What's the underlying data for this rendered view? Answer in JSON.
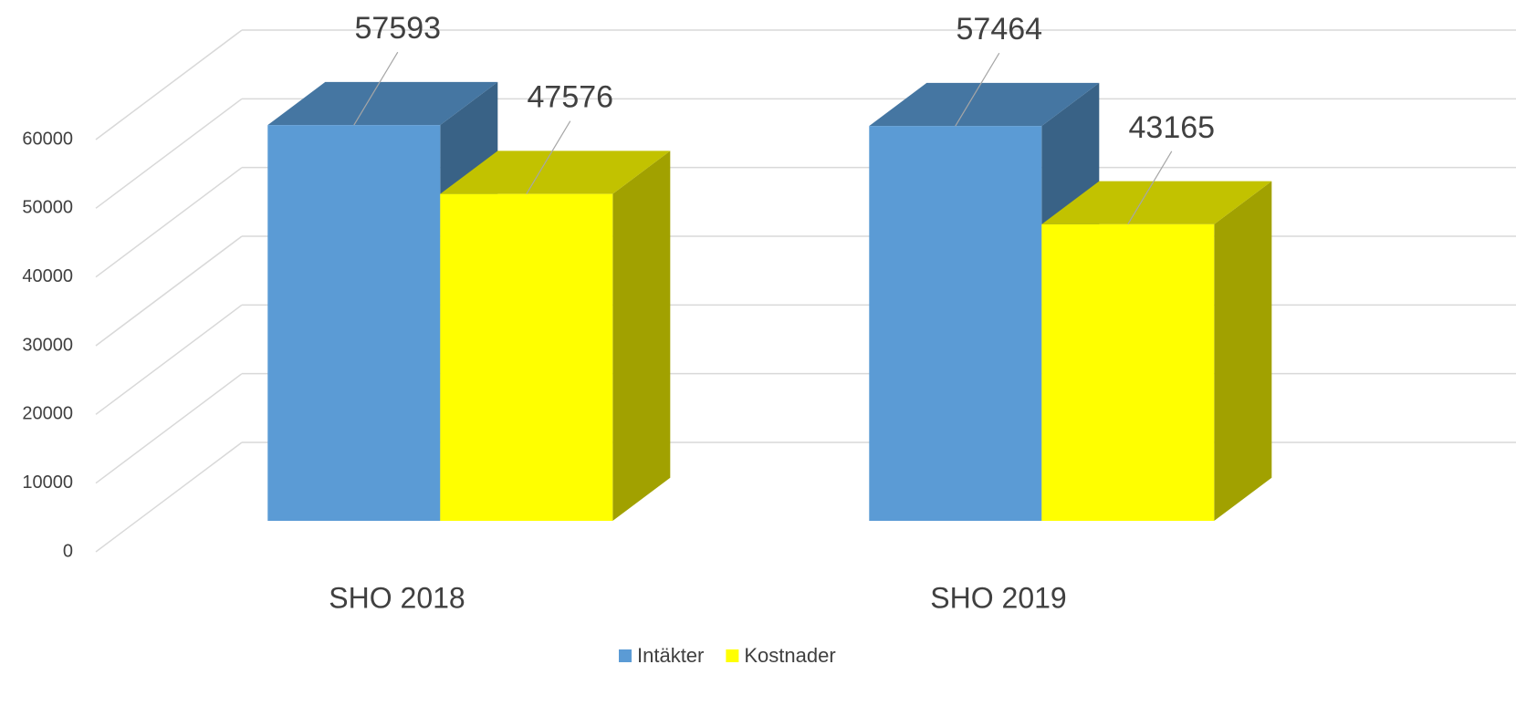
{
  "chart_data": {
    "type": "bar3d",
    "categories": [
      "SHO 2018",
      "SHO 2019"
    ],
    "series": [
      {
        "name": "Intäkter",
        "color": "#5b9bd5",
        "values": [
          57593,
          57464
        ]
      },
      {
        "name": "Kostnader",
        "color": "#ffff00",
        "values": [
          47576,
          43165
        ]
      }
    ],
    "ylim": [
      0,
      60000
    ],
    "yticks": [
      0,
      10000,
      20000,
      30000,
      40000,
      50000,
      60000
    ],
    "grid": true,
    "legend": "bottom"
  }
}
